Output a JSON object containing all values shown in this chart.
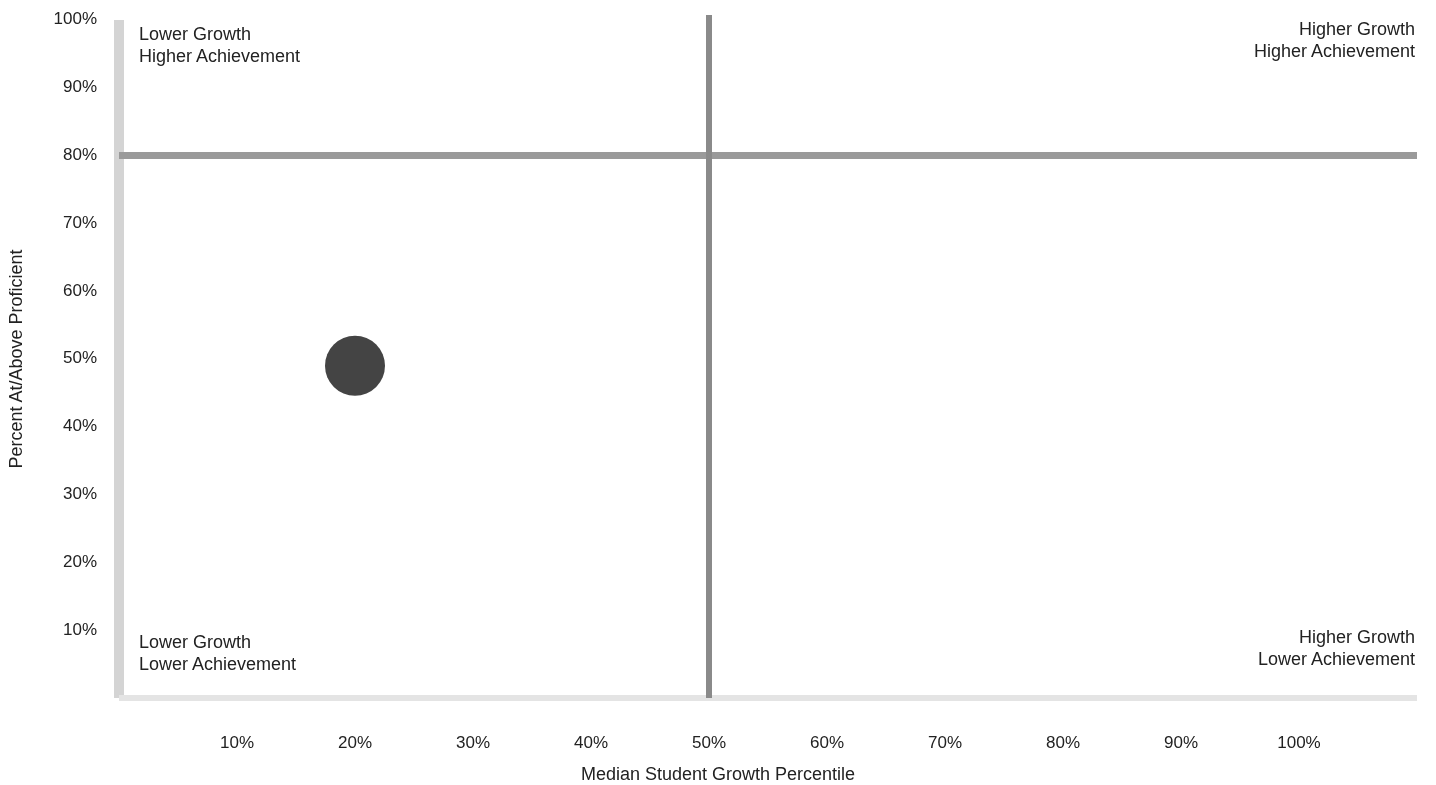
{
  "chart_data": {
    "type": "scatter",
    "xlabel": "Median Student Growth Percentile",
    "ylabel": "Percent At/Above Proficient",
    "x": [
      20
    ],
    "series": [
      {
        "color": "#444444",
        "values": [
          49
        ]
      }
    ],
    "marker": "circle",
    "xlim": [
      0,
      110
    ],
    "ylim": [
      0,
      100
    ],
    "xticks": [
      {
        "value": 10,
        "label": "10%"
      },
      {
        "value": 20,
        "label": "20%"
      },
      {
        "value": 30,
        "label": "30%"
      },
      {
        "value": 40,
        "label": "40%"
      },
      {
        "value": 50,
        "label": "50%"
      },
      {
        "value": 60,
        "label": "60%"
      },
      {
        "value": 70,
        "label": "70%"
      },
      {
        "value": 80,
        "label": "80%"
      },
      {
        "value": 90,
        "label": "90%"
      },
      {
        "value": 100,
        "label": "100%"
      }
    ],
    "yticks": [
      {
        "value": 10,
        "label": "10%"
      },
      {
        "value": 20,
        "label": "20%"
      },
      {
        "value": 30,
        "label": "30%"
      },
      {
        "value": 40,
        "label": "40%"
      },
      {
        "value": 50,
        "label": "50%"
      },
      {
        "value": 60,
        "label": "60%"
      },
      {
        "value": 70,
        "label": "70%"
      },
      {
        "value": 80,
        "label": "80%"
      },
      {
        "value": 90,
        "label": "90%"
      },
      {
        "value": 100,
        "label": "100%"
      }
    ],
    "ref_lines": [
      {
        "axis": "y",
        "value": 80,
        "color": "#9a9a9a"
      },
      {
        "axis": "x",
        "value": 50,
        "color": "#8a8a8a"
      }
    ],
    "annotations": [
      "Lower Growth\nHigher Achievement",
      "Higher Growth\nHigher Achievement",
      "Lower Growth\nLower Achievement",
      "Higher Growth\nLower Achievement"
    ]
  }
}
